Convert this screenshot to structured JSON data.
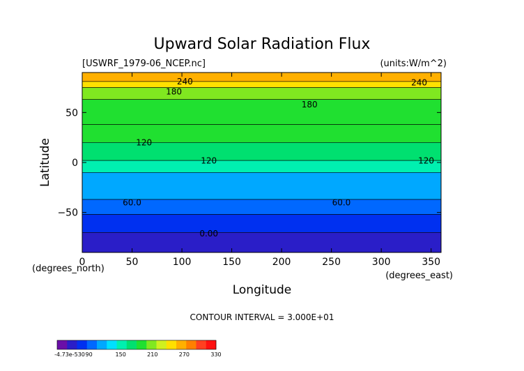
{
  "chart_data": {
    "type": "heatmap",
    "title": "Upward Solar Radiation Flux",
    "file_label": "[USWRF_1979-06_NCEP.nc]",
    "units_label": "(units:W/m^2)",
    "xlabel": "Longitude",
    "ylabel": "Latitude",
    "x_unit_label": "(degrees_east)",
    "y_unit_label": "(degrees_north)",
    "xlim": [
      0,
      360
    ],
    "ylim": [
      -90,
      90
    ],
    "x_ticks": [
      0,
      50,
      100,
      150,
      200,
      250,
      300,
      350
    ],
    "y_ticks": [
      -50,
      0,
      50
    ],
    "contour_interval_text": "CONTOUR INTERVAL = 3.000E+01",
    "contour_labels": [
      {
        "text": "240",
        "lon": 103,
        "lat": 78
      },
      {
        "text": "240",
        "lon": 338,
        "lat": 77
      },
      {
        "text": "180",
        "lon": 92,
        "lat": 68
      },
      {
        "text": "180",
        "lon": 228,
        "lat": 55
      },
      {
        "text": "120",
        "lon": 62,
        "lat": 17
      },
      {
        "text": "120",
        "lon": 127,
        "lat": -1
      },
      {
        "text": "120",
        "lon": 345,
        "lat": -1
      },
      {
        "text": "60.0",
        "lon": 50,
        "lat": -43
      },
      {
        "text": "60.0",
        "lon": 260,
        "lat": -43
      },
      {
        "text": "0.00",
        "lon": 127,
        "lat": -74
      }
    ],
    "latitude_bands": [
      {
        "lat_from": 90,
        "lat_to": 81,
        "level": 255
      },
      {
        "lat_from": 81,
        "lat_to": 75,
        "level": 225
      },
      {
        "lat_from": 75,
        "lat_to": 63,
        "level": 180
      },
      {
        "lat_from": 63,
        "lat_to": 38,
        "level": 165
      },
      {
        "lat_from": 38,
        "lat_to": 20,
        "level": 150
      },
      {
        "lat_from": 20,
        "lat_to": 2,
        "level": 135
      },
      {
        "lat_from": 2,
        "lat_to": -10,
        "level": 105
      },
      {
        "lat_from": -10,
        "lat_to": -37,
        "level": 75
      },
      {
        "lat_from": -37,
        "lat_to": -52,
        "level": 45
      },
      {
        "lat_from": -52,
        "lat_to": -70,
        "level": 15
      },
      {
        "lat_from": -70,
        "lat_to": -90,
        "level": -5
      }
    ],
    "colorbar": {
      "tick_labels": [
        "-4.73e-530",
        "90",
        "150",
        "210",
        "270",
        "330"
      ],
      "min": -30,
      "max": 330,
      "colors": [
        "#6a0fa8",
        "#2a1ec8",
        "#0030f0",
        "#0068ff",
        "#00a8ff",
        "#00e0ff",
        "#00f0b0",
        "#00e070",
        "#20e030",
        "#80e820",
        "#d0f020",
        "#ffe000",
        "#ffb000",
        "#ff8000",
        "#ff4020",
        "#ff1010"
      ]
    }
  }
}
